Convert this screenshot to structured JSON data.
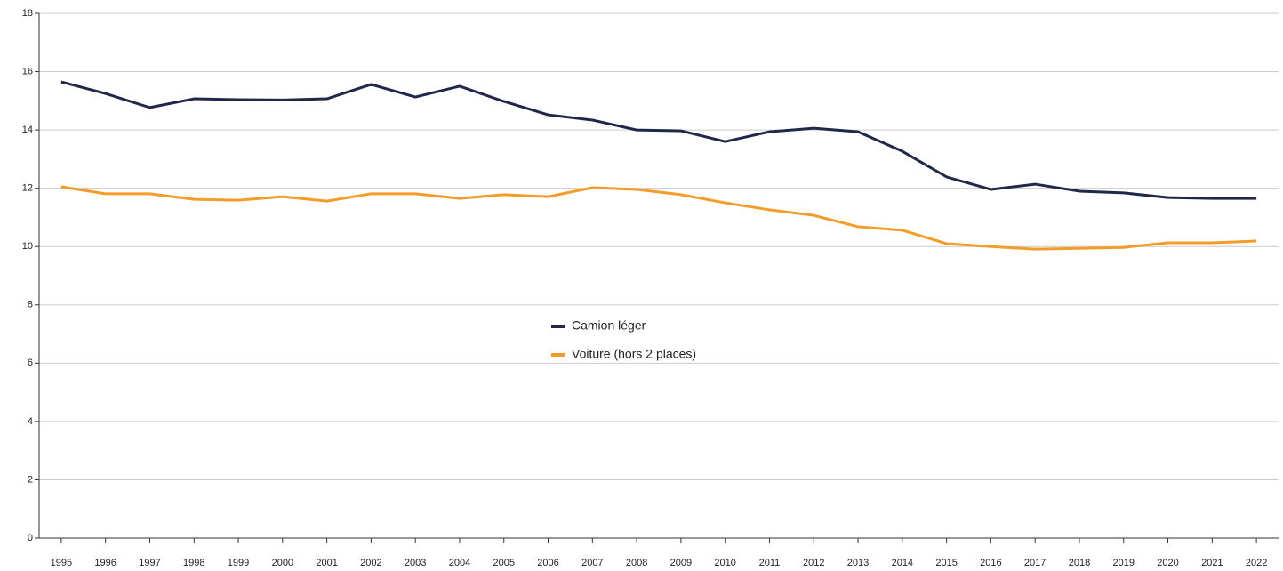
{
  "chart_data": {
    "type": "line",
    "categories": [
      "1995",
      "1996",
      "1997",
      "1998",
      "1999",
      "2000",
      "2001",
      "2002",
      "2003",
      "2004",
      "2005",
      "2006",
      "2007",
      "2008",
      "2009",
      "2010",
      "2011",
      "2012",
      "2013",
      "2014",
      "2015",
      "2016",
      "2017",
      "2018",
      "2019",
      "2020",
      "2021",
      "2022"
    ],
    "series": [
      {
        "name": "Camion léger",
        "color": "#1f2849",
        "values": [
          15.65,
          15.25,
          14.77,
          15.07,
          15.04,
          15.03,
          15.07,
          15.56,
          15.13,
          15.5,
          14.98,
          14.52,
          14.34,
          14.0,
          13.97,
          13.6,
          13.94,
          14.06,
          13.94,
          13.27,
          12.39,
          11.96,
          12.14,
          11.9,
          11.84,
          11.68,
          11.65,
          11.65
        ]
      },
      {
        "name": "Voiture (hors 2 places)",
        "color": "#f39c2a",
        "values": [
          12.05,
          11.81,
          11.81,
          11.62,
          11.59,
          11.71,
          11.56,
          11.81,
          11.81,
          11.65,
          11.78,
          11.71,
          12.02,
          11.96,
          11.78,
          11.5,
          11.26,
          11.07,
          10.68,
          10.56,
          10.1,
          10.0,
          9.91,
          9.94,
          9.97,
          10.13,
          10.13,
          10.19
        ]
      }
    ],
    "ylim": [
      0,
      18
    ],
    "yticks": [
      0,
      2,
      4,
      6,
      8,
      10,
      12,
      14,
      16,
      18
    ],
    "grid": true,
    "legend": "center"
  }
}
